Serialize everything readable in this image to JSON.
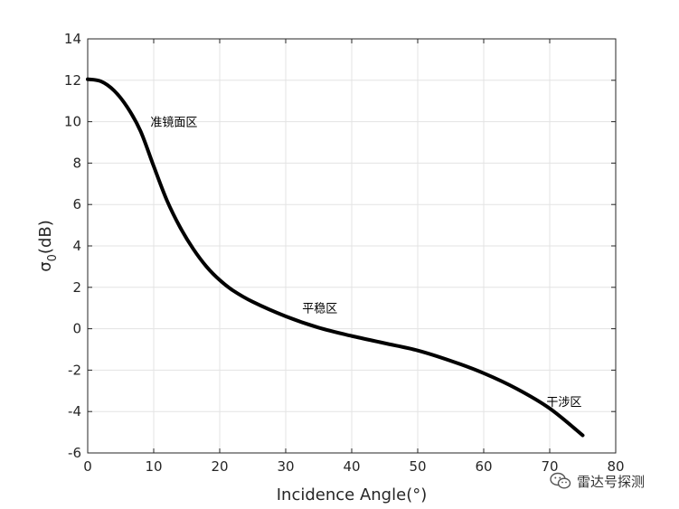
{
  "chart_data": {
    "type": "line",
    "title": "",
    "xlabel": "Incidence Angle(°)",
    "ylabel_main": "σ",
    "ylabel_sub": "0",
    "ylabel_unit": "(dB)",
    "xlim": [
      0,
      80
    ],
    "ylim": [
      -6,
      14
    ],
    "xticks": [
      0,
      10,
      20,
      30,
      40,
      50,
      60,
      70,
      80
    ],
    "yticks": [
      -6,
      -4,
      -2,
      0,
      2,
      4,
      6,
      8,
      10,
      12,
      14
    ],
    "grid": true,
    "series": [
      {
        "color": "#000000",
        "x": [
          0,
          2,
          4,
          6,
          8,
          10,
          12,
          14,
          16,
          18,
          20,
          22,
          25,
          30,
          35,
          40,
          45,
          50,
          55,
          60,
          65,
          70,
          75
        ],
        "y": [
          12.05,
          11.95,
          11.5,
          10.7,
          9.55,
          7.85,
          6.2,
          4.9,
          3.85,
          3.0,
          2.35,
          1.85,
          1.3,
          0.6,
          0.05,
          -0.35,
          -0.7,
          -1.05,
          -1.55,
          -2.15,
          -2.9,
          -3.85,
          -5.15
        ]
      }
    ],
    "annotations": [
      {
        "text": "准镜面区",
        "x": 9.5,
        "y": 10.0
      },
      {
        "text": "平稳区",
        "x": 32.5,
        "y": 1.0
      },
      {
        "text": "干涉区",
        "x": 69.5,
        "y": -3.5
      }
    ]
  },
  "watermark": {
    "text": "雷达号探测",
    "icon": "wechat-icon"
  }
}
